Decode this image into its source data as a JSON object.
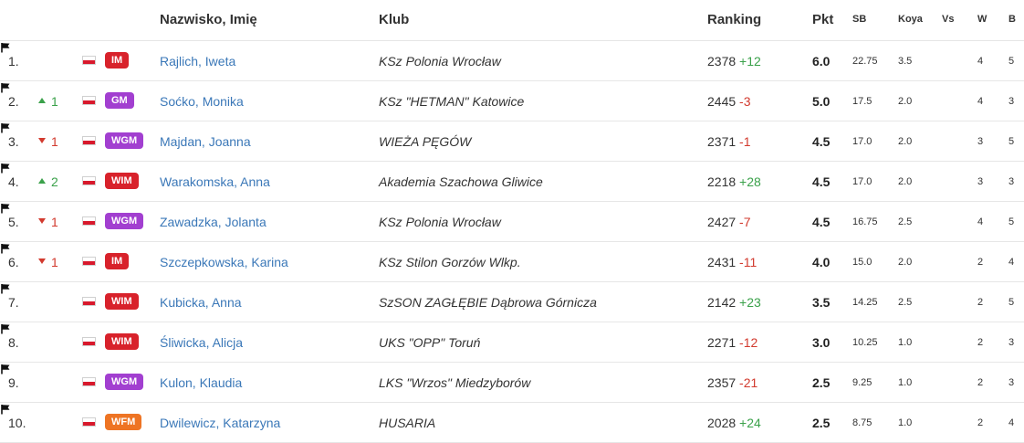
{
  "header": {
    "name": "Nazwisko, Imię",
    "club": "Klub",
    "ranking": "Ranking",
    "pts": "Pkt",
    "sb": "SB",
    "koya": "Koya",
    "vs": "Vs",
    "w": "W",
    "b": "B"
  },
  "flag_icon": "poland-flag-icon",
  "vs_icon": "flag-icon",
  "rows": [
    {
      "pos": "1.",
      "dir": "",
      "delta": "",
      "title": "IM",
      "name": "Rajlich, Iweta",
      "club": "KSz Polonia Wrocław",
      "rating": "2378",
      "change": "+12",
      "pts": "6.0",
      "sb": "22.75",
      "koya": "3.5",
      "w": "4",
      "b": "5"
    },
    {
      "pos": "2.",
      "dir": "up",
      "delta": "1",
      "title": "GM",
      "name": "Soćko, Monika",
      "club": "KSz \"HETMAN\" Katowice",
      "rating": "2445",
      "change": "-3",
      "pts": "5.0",
      "sb": "17.5",
      "koya": "2.0",
      "w": "4",
      "b": "3"
    },
    {
      "pos": "3.",
      "dir": "down",
      "delta": "1",
      "title": "WGM",
      "name": "Majdan, Joanna",
      "club": "WIEŻA PĘGÓW",
      "rating": "2371",
      "change": "-1",
      "pts": "4.5",
      "sb": "17.0",
      "koya": "2.0",
      "w": "3",
      "b": "5"
    },
    {
      "pos": "4.",
      "dir": "up",
      "delta": "2",
      "title": "WIM",
      "name": "Warakomska, Anna",
      "club": "Akademia Szachowa Gliwice",
      "rating": "2218",
      "change": "+28",
      "pts": "4.5",
      "sb": "17.0",
      "koya": "2.0",
      "w": "3",
      "b": "3"
    },
    {
      "pos": "5.",
      "dir": "down",
      "delta": "1",
      "title": "WGM",
      "name": "Zawadzka, Jolanta",
      "club": "KSz Polonia Wrocław",
      "rating": "2427",
      "change": "-7",
      "pts": "4.5",
      "sb": "16.75",
      "koya": "2.5",
      "w": "4",
      "b": "5"
    },
    {
      "pos": "6.",
      "dir": "down",
      "delta": "1",
      "title": "IM",
      "name": "Szczepkowska, Karina",
      "club": "KSz Stilon Gorzów Wlkp.",
      "rating": "2431",
      "change": "-11",
      "pts": "4.0",
      "sb": "15.0",
      "koya": "2.0",
      "w": "2",
      "b": "4"
    },
    {
      "pos": "7.",
      "dir": "",
      "delta": "",
      "title": "WIM",
      "name": "Kubicka, Anna",
      "club": "SzSON ZAGŁĘBIE Dąbrowa Górnicza",
      "rating": "2142",
      "change": "+23",
      "pts": "3.5",
      "sb": "14.25",
      "koya": "2.5",
      "w": "2",
      "b": "5"
    },
    {
      "pos": "8.",
      "dir": "",
      "delta": "",
      "title": "WIM",
      "name": "Śliwicka, Alicja",
      "club": "UKS \"OPP\" Toruń",
      "rating": "2271",
      "change": "-12",
      "pts": "3.0",
      "sb": "10.25",
      "koya": "1.0",
      "w": "2",
      "b": "3"
    },
    {
      "pos": "9.",
      "dir": "",
      "delta": "",
      "title": "WGM",
      "name": "Kulon, Klaudia",
      "club": "LKS \"Wrzos\" Miedzyborów",
      "rating": "2357",
      "change": "-21",
      "pts": "2.5",
      "sb": "9.25",
      "koya": "1.0",
      "w": "2",
      "b": "3"
    },
    {
      "pos": "10.",
      "dir": "",
      "delta": "",
      "title": "WFM",
      "name": "Dwilewicz, Katarzyna",
      "club": "HUSARIA",
      "rating": "2028",
      "change": "+24",
      "pts": "2.5",
      "sb": "8.75",
      "koya": "1.0",
      "w": "2",
      "b": "4"
    }
  ]
}
